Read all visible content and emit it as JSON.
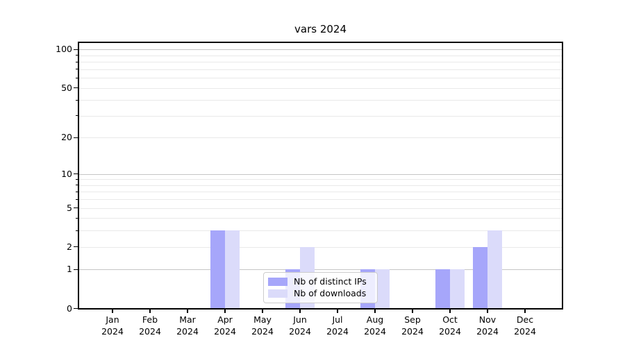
{
  "chart_data": {
    "type": "bar",
    "title": "vars 2024",
    "categories": [
      "Jan 2024",
      "Feb 2024",
      "Mar 2024",
      "Apr 2024",
      "May 2024",
      "Jun 2024",
      "Jul 2024",
      "Aug 2024",
      "Sep 2024",
      "Oct 2024",
      "Nov 2024",
      "Dec 2024"
    ],
    "months": [
      "Jan",
      "Feb",
      "Mar",
      "Apr",
      "May",
      "Jun",
      "Jul",
      "Aug",
      "Sep",
      "Oct",
      "Nov",
      "Dec"
    ],
    "year": "2024",
    "series": [
      {
        "name": "Nb of distinct IPs",
        "color": "#a6a6fa",
        "values": [
          0,
          0,
          0,
          3,
          0,
          1,
          0,
          1,
          0,
          1,
          2,
          0
        ]
      },
      {
        "name": "Nb of downloads",
        "color": "#dbdbfa",
        "values": [
          0,
          0,
          0,
          3,
          0,
          2,
          0,
          1,
          0,
          1,
          3,
          0
        ]
      }
    ],
    "xlabel": "",
    "ylabel": "",
    "yscale": "log10(value+1)",
    "ylim": [
      0,
      115
    ],
    "y_ticks": [
      0,
      1,
      2,
      5,
      10,
      20,
      50,
      100
    ],
    "y_tick_labels": [
      "0",
      "1",
      "2",
      "5",
      "10",
      "20",
      "50",
      "100"
    ],
    "grid": "horizontal",
    "grid_major_values": [
      1,
      10,
      100
    ],
    "grid_minor_values": [
      2,
      3,
      4,
      5,
      6,
      7,
      8,
      9,
      20,
      30,
      40,
      50,
      60,
      70,
      80,
      90
    ],
    "legend_position": "inside lower-center"
  },
  "colors": {
    "bar_distinct_ips": "#a6a6fa",
    "bar_downloads": "#dbdbfa",
    "grid_major": "#c6c6c6",
    "grid_minor": "#e9e9e9",
    "spine": "#000000",
    "legend_border": "#cccccc",
    "background": "#ffffff",
    "text": "#000000"
  }
}
